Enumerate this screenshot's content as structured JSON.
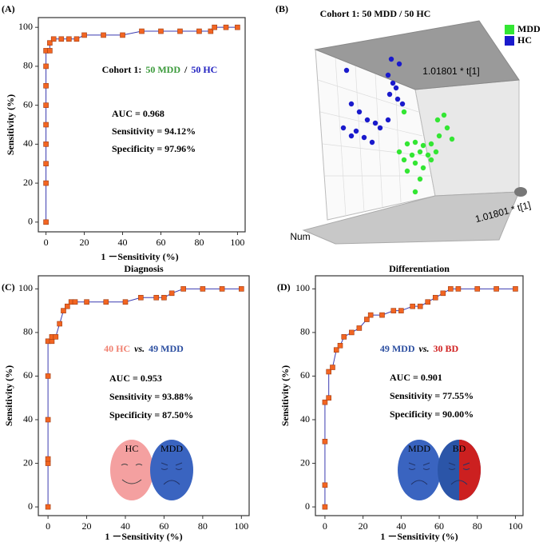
{
  "chart_data": [
    {
      "type": "line",
      "label": "(A)",
      "subtitle_parts": [
        {
          "text": "Cohort 1:",
          "color": "#000000"
        },
        {
          "text": "50 MDD",
          "color": "#3a9a3a"
        },
        {
          "text": "/",
          "color": "#000000"
        },
        {
          "text": "50 HC",
          "color": "#2020c0"
        }
      ],
      "annotations": [
        "AUC =  0.968",
        "Sensitivity = 94.12%",
        "Specificity = 97.96%"
      ],
      "xlabel": "1 －Sensitivity (%)",
      "ylabel": "Sensitivity (%)",
      "x": [
        0,
        0,
        0,
        0,
        0,
        0,
        0,
        0,
        0,
        2,
        2,
        4,
        8,
        12,
        16,
        20,
        30,
        40,
        50,
        60,
        70,
        80,
        86,
        88,
        94,
        100
      ],
      "series": [
        {
          "values": [
            0,
            20,
            30,
            40,
            50,
            60,
            70,
            80,
            88,
            88,
            92,
            94,
            94,
            94,
            94,
            96,
            96,
            96,
            98,
            98,
            98,
            98,
            98,
            100,
            100,
            100
          ],
          "color": "#f26522",
          "line_color": "#3b3bb0"
        }
      ],
      "xlim": [
        -4,
        104
      ],
      "ylim": [
        -5,
        105
      ],
      "xticks": [
        0,
        20,
        40,
        60,
        80,
        100
      ],
      "yticks": [
        0,
        20,
        40,
        60,
        80,
        100
      ]
    },
    {
      "type": "scatter",
      "label": "(B)",
      "title": "Cohort 1: 50 MDD / 50 HC",
      "axis_labels": [
        "1.01801 * t[1]",
        "1.01801 * t[1]",
        "Num"
      ],
      "legend": "top-right",
      "series": [
        {
          "name": "MDD",
          "color": "#33e633",
          "x": [
            78,
            80,
            75,
            83,
            55,
            60,
            65,
            70,
            50,
            58,
            63,
            68,
            73,
            53,
            60,
            65,
            70,
            55,
            63,
            60,
            74,
            53
          ],
          "values": [
            58,
            50,
            45,
            43,
            40,
            41,
            39,
            40,
            35,
            33,
            35,
            33,
            35,
            30,
            28,
            25,
            30,
            23,
            18,
            10,
            55,
            60
          ]
        },
        {
          "name": "HC",
          "color": "#1a1acc",
          "x": [
            17,
            45,
            50,
            43,
            46,
            44,
            49,
            52,
            20,
            25,
            30,
            35,
            15,
            23,
            28,
            33,
            38,
            43,
            20,
            48
          ],
          "values": [
            86,
            93,
            90,
            83,
            78,
            71,
            68,
            65,
            65,
            60,
            55,
            53,
            50,
            48,
            44,
            41,
            50,
            55,
            45,
            75
          ]
        }
      ],
      "xlim": [
        0,
        100
      ],
      "ylim": [
        0,
        100
      ]
    },
    {
      "type": "line",
      "label": "(C)",
      "title": "Diagnosis",
      "subtitle_parts": [
        {
          "text": "40 HC",
          "color": "#f08070"
        },
        {
          "text": "vs.",
          "color": "#000000"
        },
        {
          "text": "49 MDD",
          "color": "#2b4ea0"
        }
      ],
      "annotations": [
        "AUC = 0.953",
        "Sensitivity = 93.88%",
        "Specificity = 87.50%"
      ],
      "faces": [
        {
          "label": "HC",
          "color": "#f4a0a0"
        },
        {
          "label": "MDD",
          "color": "#3a64c0"
        }
      ],
      "xlabel": "1 －Sensitivity (%)",
      "ylabel": "Sensitivity (%)",
      "x": [
        0,
        0,
        0,
        0,
        0,
        0,
        2,
        2,
        4,
        6,
        8,
        10,
        12,
        14,
        20,
        30,
        40,
        48,
        56,
        60,
        64,
        70,
        80,
        90,
        100
      ],
      "series": [
        {
          "values": [
            0,
            20,
            22,
            40,
            60,
            76,
            76,
            78,
            78,
            84,
            90,
            92,
            94,
            94,
            94,
            94,
            94,
            96,
            96,
            96,
            98,
            100,
            100,
            100,
            100
          ],
          "color": "#f26522",
          "line_color": "#3b3bb0"
        }
      ],
      "xlim": [
        -5,
        104
      ],
      "ylim": [
        -4,
        106
      ],
      "xticks": [
        0,
        20,
        40,
        60,
        80,
        100
      ],
      "yticks": [
        0,
        20,
        40,
        60,
        80,
        100
      ]
    },
    {
      "type": "line",
      "label": "(D)",
      "title": "Differentiation",
      "subtitle_parts": [
        {
          "text": "49 MDD",
          "color": "#2b4ea0"
        },
        {
          "text": "vs.",
          "color": "#000000"
        },
        {
          "text": "30 BD",
          "color": "#d02020"
        }
      ],
      "annotations": [
        "AUC = 0.901",
        "Sensitivity = 77.55%",
        "Specificity = 90.00%"
      ],
      "faces": [
        {
          "label": "MDD",
          "color": "#3a64c0"
        },
        {
          "label": "BD",
          "color": "#2b55a8",
          "split_color": "#cc2020"
        }
      ],
      "xlabel": "1 －Sensitivity (%)",
      "ylabel": "Sensitivity (%)",
      "x": [
        0,
        0,
        0,
        0,
        2,
        2,
        4,
        6,
        8,
        10,
        14,
        18,
        22,
        24,
        30,
        36,
        40,
        46,
        50,
        54,
        58,
        62,
        66,
        70,
        80,
        90,
        100
      ],
      "series": [
        {
          "values": [
            0,
            10,
            30,
            48,
            50,
            62,
            64,
            72,
            74,
            78,
            80,
            82,
            86,
            88,
            88,
            90,
            90,
            92,
            92,
            94,
            96,
            98,
            100,
            100,
            100,
            100,
            100
          ],
          "color": "#f26522",
          "line_color": "#3b3bb0"
        }
      ],
      "xlim": [
        -5,
        104
      ],
      "ylim": [
        -4,
        106
      ],
      "xticks": [
        0,
        20,
        40,
        60,
        80,
        100
      ],
      "yticks": [
        0,
        20,
        40,
        60,
        80,
        100
      ]
    }
  ]
}
